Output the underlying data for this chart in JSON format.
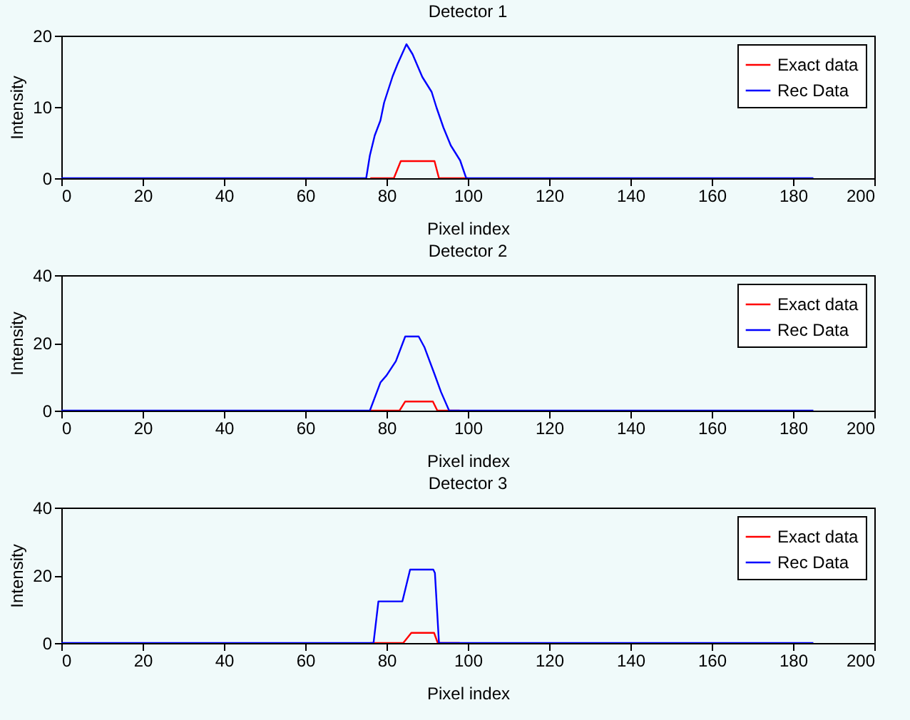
{
  "chart_data": [
    {
      "type": "line",
      "title": "Detector 1",
      "xlabel": "Pixel index",
      "ylabel": "Intensity",
      "xlim": [
        0,
        200
      ],
      "xticks": [
        0,
        20,
        40,
        60,
        80,
        100,
        120,
        140,
        160,
        180,
        200
      ],
      "ylim": [
        0,
        20
      ],
      "yticks": [
        0,
        10,
        20
      ],
      "grid": false,
      "legend": "top right",
      "series": [
        {
          "name": "Exact data",
          "color": "#ff0000",
          "x": [
            76,
            81.8,
            83.5,
            91.8,
            92.9,
            100
          ],
          "values": [
            0,
            0,
            2.4,
            2.4,
            0,
            0
          ]
        },
        {
          "name": "Rec Data",
          "color": "#0000ff",
          "x": [
            0,
            75,
            75.9,
            77.1,
            78.5,
            79.4,
            81.5,
            82.7,
            84.9,
            86.4,
            88.8,
            91.1,
            92.3,
            94,
            95.8,
            98.1,
            99.6,
            185
          ],
          "values": [
            0,
            0,
            3.2,
            6,
            8.1,
            10.6,
            14.3,
            16,
            18.8,
            17.4,
            14.2,
            12.1,
            9.9,
            7.1,
            4.6,
            2.5,
            0,
            0
          ]
        }
      ]
    },
    {
      "type": "line",
      "title": "Detector 2",
      "xlabel": "Pixel index",
      "ylabel": "Intensity",
      "xlim": [
        0,
        200
      ],
      "xticks": [
        0,
        20,
        40,
        60,
        80,
        100,
        120,
        140,
        160,
        180,
        200
      ],
      "ylim": [
        0,
        40
      ],
      "yticks": [
        0,
        20,
        40
      ],
      "grid": false,
      "legend": "top right",
      "series": [
        {
          "name": "Exact data",
          "color": "#ff0000",
          "x": [
            76,
            83.2,
            84.6,
            91.4,
            92.5,
            98
          ],
          "values": [
            0,
            0,
            2.7,
            2.7,
            0,
            0
          ]
        },
        {
          "name": "Rec Data",
          "color": "#0000ff",
          "x": [
            0,
            75.9,
            78.5,
            80,
            82.3,
            84.6,
            87.9,
            89.3,
            91.7,
            93.4,
            95.4,
            185
          ],
          "values": [
            0,
            0,
            8.3,
            10.4,
            14.6,
            21.9,
            21.9,
            18.8,
            11.1,
            5.5,
            0,
            0
          ]
        }
      ]
    },
    {
      "type": "line",
      "title": "Detector 3",
      "xlabel": "Pixel index",
      "ylabel": "Intensity",
      "xlim": [
        0,
        200
      ],
      "xticks": [
        0,
        20,
        40,
        60,
        80,
        100,
        120,
        140,
        160,
        180,
        200
      ],
      "ylim": [
        0,
        40
      ],
      "yticks": [
        0,
        20,
        40
      ],
      "grid": false,
      "legend": "top right",
      "series": [
        {
          "name": "Exact data",
          "color": "#ff0000",
          "x": [
            76,
            84.1,
            86.1,
            91.7,
            92.6,
            98
          ],
          "values": [
            0,
            0,
            3,
            3,
            0,
            0
          ]
        },
        {
          "name": "Rec Data",
          "color": "#0000ff",
          "x": [
            0,
            76.8,
            78,
            83.9,
            85.8,
            91.5,
            91.9,
            92.9,
            185
          ],
          "values": [
            0,
            0,
            12.3,
            12.3,
            21.7,
            21.7,
            20.7,
            0,
            0
          ]
        }
      ]
    }
  ]
}
